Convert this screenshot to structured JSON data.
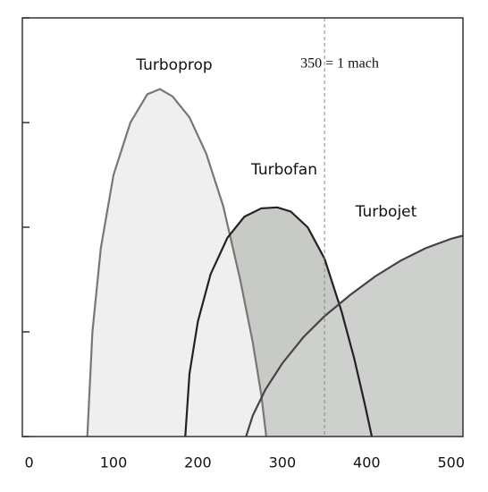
{
  "chart_data": {
    "type": "area",
    "xlim": [
      -8,
      514
    ],
    "xticks": [
      0,
      100,
      200,
      300,
      400,
      500
    ],
    "ylim": [
      0,
      4
    ],
    "yticks": [
      0,
      1,
      2,
      3,
      4
    ],
    "mach_line_x": 350,
    "annotation": "350 = 1 mach",
    "series": [
      {
        "name": "Turboprop",
        "color": "#efefef",
        "stroke": "#777777",
        "x": [
          69,
          75,
          85,
          100,
          120,
          140,
          155,
          170,
          190,
          210,
          230,
          250,
          265,
          275,
          281
        ],
        "values": [
          0,
          1.0,
          1.8,
          2.5,
          3.0,
          3.27,
          3.32,
          3.25,
          3.05,
          2.7,
          2.2,
          1.5,
          0.9,
          0.4,
          0
        ]
      },
      {
        "name": "Turbofan",
        "color": "#c8cac6",
        "stroke": "#222222",
        "x": [
          185,
          190,
          200,
          215,
          235,
          255,
          275,
          294,
          310,
          330,
          350,
          370,
          385,
          398,
          406
        ],
        "values": [
          0,
          0.6,
          1.1,
          1.55,
          1.9,
          2.1,
          2.18,
          2.19,
          2.15,
          2.0,
          1.7,
          1.2,
          0.75,
          0.3,
          0
        ]
      },
      {
        "name": "Turbojet",
        "color": "#cdd0cc",
        "stroke": "#444444",
        "x": [
          257,
          265,
          280,
          300,
          325,
          350,
          380,
          410,
          440,
          470,
          500,
          514
        ],
        "values": [
          0,
          0.2,
          0.45,
          0.7,
          0.95,
          1.15,
          1.35,
          1.53,
          1.68,
          1.8,
          1.89,
          1.92
        ]
      }
    ]
  }
}
